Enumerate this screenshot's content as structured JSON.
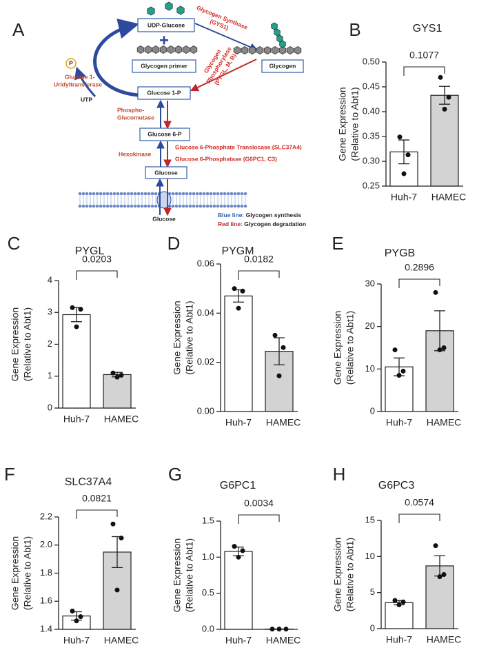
{
  "diagram": {
    "panel": "A",
    "udp": "UDP-Glucose",
    "plus": "+",
    "primer": "Glycogen primer",
    "glycogen": "Glycogen",
    "g1p": "Glucose 1-P",
    "g6p": "Glucose 6-P",
    "glucose": "Glucose",
    "glucose_out": "Glucose",
    "p": "P",
    "utp": "UTP",
    "gys": [
      "Glycogen Synthase",
      "(GYS1)"
    ],
    "pyg": [
      "Glycogen",
      "Phosphorylase",
      "(PYGL, M, B)"
    ],
    "ugp": [
      "Glucose 1-",
      "Uridyltransferase"
    ],
    "pgm": [
      "Phospho-",
      "Glucomutase"
    ],
    "hk": "Hexokinase",
    "slc": "Glucose 6-Phosphate Translocase (SLC37A4)",
    "g6pc": "Glucose 6-Phosphatase (G6PC1, C3)",
    "legend": [
      {
        "key": "Blue line:",
        "text": "Glycogen synthesis"
      },
      {
        "key": "Red line:",
        "text": "Glycogen degradation"
      }
    ]
  },
  "chart_data": [
    {
      "type": "bar",
      "panel": "B",
      "title": "GYS1",
      "ylabel": [
        "Gene Expression",
        "(Relative to Abt1)"
      ],
      "categories": [
        "Huh-7",
        "HAMEC"
      ],
      "colors": [
        "#ffffff",
        "#d3d3d3"
      ],
      "values": [
        0.319,
        0.433
      ],
      "errors": [
        0.024,
        0.018
      ],
      "points": [
        [
          0.349,
          0.313,
          0.275
        ],
        [
          0.469,
          0.429,
          0.405
        ]
      ],
      "annotation": "0.1077",
      "ylim": [
        0.25,
        0.5
      ],
      "yticks": [
        0.25,
        {
          "value": 0.3,
          "label": "0.30"
        },
        0.35,
        {
          "value": 0.4,
          "label": "0.40"
        },
        0.45,
        {
          "value": 0.5,
          "label": "0.50"
        }
      ]
    },
    {
      "type": "bar",
      "panel": "C",
      "title": "PYGL",
      "ylabel": [
        "Gene Expression",
        "(Relative to Abt1)"
      ],
      "categories": [
        "Huh-7",
        "HAMEC"
      ],
      "colors": [
        "#ffffff",
        "#d3d3d3"
      ],
      "values": [
        2.93,
        1.05
      ],
      "errors": [
        0.22,
        0.07
      ],
      "points": [
        [
          3.15,
          3.1,
          2.55
        ],
        [
          1.1,
          1.03,
          0.97
        ]
      ],
      "annotation": "0.0203",
      "ylim": [
        0,
        4
      ],
      "yticks": [
        0,
        1,
        2,
        3,
        4
      ]
    },
    {
      "type": "bar",
      "panel": "D",
      "title": "PYGM",
      "ylabel": [
        "Gene Expression",
        "(Relative to Abt1)"
      ],
      "categories": [
        "Huh-7",
        "HAMEC"
      ],
      "colors": [
        "#ffffff",
        "#d3d3d3"
      ],
      "values": [
        0.047,
        0.0245
      ],
      "errors": [
        0.0025,
        0.0055
      ],
      "points": [
        [
          0.05,
          0.049,
          0.042
        ],
        [
          0.031,
          0.026,
          0.0145
        ]
      ],
      "annotation": "0.0182",
      "ylim": [
        0,
        0.06
      ],
      "yticks": [
        {
          "value": 0,
          "label": "0.00"
        },
        0.02,
        0.04,
        0.06
      ]
    },
    {
      "type": "bar",
      "panel": "E",
      "title": "PYGB",
      "ylabel": [
        "Gene Expression",
        "(Relative to Abt1)"
      ],
      "categories": [
        "Huh-7",
        "HAMEC"
      ],
      "colors": [
        "#ffffff",
        "#d3d3d3"
      ],
      "values": [
        10.5,
        19
      ],
      "errors": [
        2.1,
        4.7
      ],
      "points": [
        [
          14.5,
          9.5,
          8.5
        ],
        [
          28,
          15,
          14.5
        ]
      ],
      "annotation": "0.2896",
      "ylim": [
        0,
        30
      ],
      "yticks": [
        0,
        10,
        20,
        30
      ]
    },
    {
      "type": "bar",
      "panel": "F",
      "title": "SLC37A4",
      "ylabel": [
        "Gene Expression",
        "(Relative to Abt1)"
      ],
      "categories": [
        "Huh-7",
        "HAMEC"
      ],
      "colors": [
        "#ffffff",
        "#d3d3d3"
      ],
      "values": [
        1.495,
        1.95
      ],
      "errors": [
        0.03,
        0.11
      ],
      "points": [
        [
          1.53,
          1.49,
          1.46
        ],
        [
          2.15,
          2.05,
          1.68
        ]
      ],
      "annotation": "0.0821",
      "ylim": [
        1.4,
        2.2
      ],
      "yticks": [
        1.4,
        1.6,
        1.8,
        {
          "value": 2,
          "label": "2.0"
        },
        2.2
      ]
    },
    {
      "type": "bar",
      "panel": "G",
      "title": "G6PC1",
      "ylabel": [
        "Gene Expression",
        "(Relative to Abt1)"
      ],
      "categories": [
        "Huh-7",
        "HAMEC"
      ],
      "colors": [
        "#ffffff",
        "#d3d3d3"
      ],
      "values": [
        1.08,
        0.003
      ],
      "errors": [
        0.06,
        0.001
      ],
      "points": [
        [
          1.15,
          1.09,
          1.0
        ],
        [
          0.003,
          0.003,
          0.003
        ]
      ],
      "annotation": "0.0034",
      "ylim": [
        0,
        1.5
      ],
      "yticks": [
        {
          "value": 0,
          "label": "0.0"
        },
        0.5,
        {
          "value": 1,
          "label": "1.0"
        },
        1.5
      ]
    },
    {
      "type": "bar",
      "panel": "H",
      "title": "G6PC3",
      "ylabel": [
        "Gene Expression",
        "(Relative to Abt1)"
      ],
      "categories": [
        "Huh-7",
        "HAMEC"
      ],
      "colors": [
        "#ffffff",
        "#d3d3d3"
      ],
      "values": [
        3.6,
        8.7
      ],
      "errors": [
        0.3,
        1.4
      ],
      "points": [
        [
          3.9,
          3.7,
          3.3
        ],
        [
          11.5,
          7.5,
          7.2
        ]
      ],
      "annotation": "0.0574",
      "ylim": [
        0,
        15
      ],
      "yticks": [
        0,
        5,
        10,
        15
      ]
    }
  ]
}
